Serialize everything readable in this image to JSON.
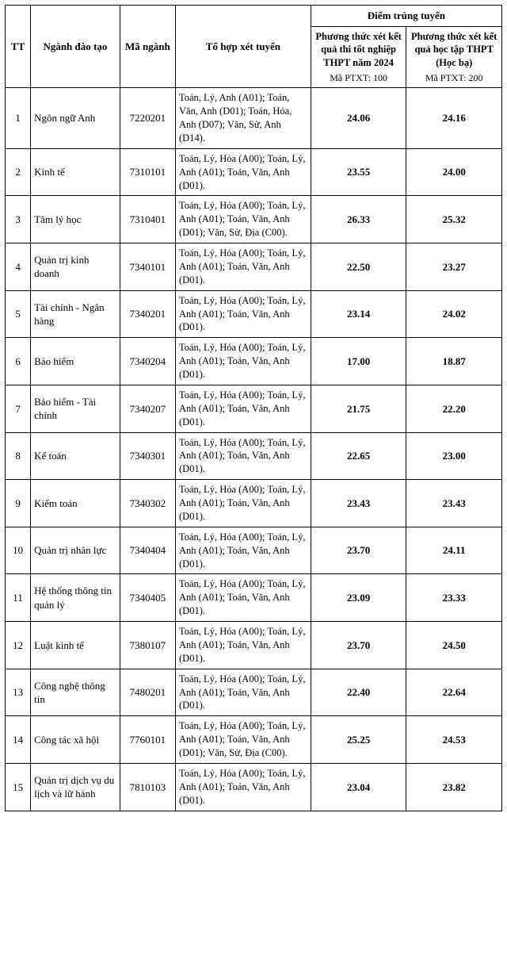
{
  "headers": {
    "tt": "TT",
    "name": "Ngành đào tạo",
    "code": "Mã ngành",
    "combo": "Tổ hợp xét tuyển",
    "score_group": "Điểm trúng tuyển",
    "score1_main": "Phương thức xét kết quả thi tốt nghiệp THPT năm 2024",
    "score1_sub": "Mã PTXT: 100",
    "score2_main": "Phương thức xét kết quả học tập THPT (Học bạ)",
    "score2_sub": "Mã PTXT: 200"
  },
  "rows": [
    {
      "tt": "1",
      "name": "Ngôn ngữ Anh",
      "code": "7220201",
      "combo": "Toán, Lý, Anh (A01); Toán, Văn, Anh (D01); Toán, Hóa, Anh (D07); Văn, Sử, Anh (D14).",
      "s1": "24.06",
      "s2": "24.16"
    },
    {
      "tt": "2",
      "name": "Kinh tế",
      "code": "7310101",
      "combo": "Toán, Lý, Hóa (A00); Toán, Lý, Anh (A01); Toán, Văn, Anh (D01).",
      "s1": "23.55",
      "s2": "24.00"
    },
    {
      "tt": "3",
      "name": "Tâm lý học",
      "code": "7310401",
      "combo": "Toán, Lý, Hóa (A00); Toán, Lý, Anh (A01); Toán, Văn, Anh (D01); Văn, Sử, Địa (C00).",
      "s1": "26.33",
      "s2": "25.32"
    },
    {
      "tt": "4",
      "name": "Quản trị kinh doanh",
      "code": "7340101",
      "combo": "Toán, Lý, Hóa (A00); Toán, Lý, Anh (A01); Toán, Văn, Anh (D01).",
      "s1": "22.50",
      "s2": "23.27"
    },
    {
      "tt": "5",
      "name": "Tài chính - Ngân hàng",
      "code": "7340201",
      "combo": "Toán, Lý, Hóa (A00); Toán, Lý, Anh (A01); Toán, Văn, Anh (D01).",
      "s1": "23.14",
      "s2": "24.02"
    },
    {
      "tt": "6",
      "name": "Bảo hiểm",
      "code": "7340204",
      "combo": "Toán, Lý, Hóa (A00); Toán, Lý, Anh (A01); Toán, Văn, Anh (D01).",
      "s1": "17.00",
      "s2": "18.87"
    },
    {
      "tt": "7",
      "name": "Bảo hiểm - Tài chính",
      "code": "7340207",
      "combo": "Toán, Lý, Hóa (A00); Toán, Lý, Anh (A01); Toán, Văn, Anh (D01).",
      "s1": "21.75",
      "s2": "22.20"
    },
    {
      "tt": "8",
      "name": "Kế toán",
      "code": "7340301",
      "combo": "Toán, Lý, Hóa (A00); Toán, Lý, Anh (A01); Toán, Văn, Anh (D01).",
      "s1": "22.65",
      "s2": "23.00"
    },
    {
      "tt": "9",
      "name": "Kiểm toán",
      "code": "7340302",
      "combo": "Toán, Lý, Hóa (A00); Toán, Lý, Anh (A01); Toán, Văn, Anh (D01).",
      "s1": "23.43",
      "s2": "23.43"
    },
    {
      "tt": "10",
      "name": "Quản trị nhân lực",
      "code": "7340404",
      "combo": "Toán, Lý, Hóa (A00); Toán, Lý, Anh (A01); Toán, Văn, Anh (D01).",
      "s1": "23.70",
      "s2": "24.11"
    },
    {
      "tt": "11",
      "name": "Hệ thống thông tin quản lý",
      "code": "7340405",
      "combo": "Toán, Lý, Hóa (A00); Toán, Lý, Anh (A01); Toán, Văn, Anh (D01).",
      "s1": "23.09",
      "s2": "23.33"
    },
    {
      "tt": "12",
      "name": "Luật kinh tế",
      "code": "7380107",
      "combo": "Toán, Lý, Hóa (A00); Toán, Lý, Anh (A01); Toán, Văn, Anh (D01).",
      "s1": "23.70",
      "s2": "24.50"
    },
    {
      "tt": "13",
      "name": "Công nghệ thông tin",
      "code": "7480201",
      "combo": "Toán, Lý, Hóa (A00); Toán, Lý, Anh (A01); Toán, Văn, Anh (D01).",
      "s1": "22.40",
      "s2": "22.64"
    },
    {
      "tt": "14",
      "name": "Công tác xã hội",
      "code": "7760101",
      "combo": "Toán, Lý, Hóa (A00); Toán, Lý, Anh (A01); Toán, Văn, Anh (D01); Văn, Sử, Địa (C00).",
      "s1": "25.25",
      "s2": "24.53"
    },
    {
      "tt": "15",
      "name": "Quản trị dịch vụ du lịch và lữ hành",
      "code": "7810103",
      "combo": "Toán, Lý, Hóa (A00); Toán, Lý, Anh (A01); Toán, Văn, Anh (D01).",
      "s1": "23.04",
      "s2": "23.82"
    }
  ]
}
